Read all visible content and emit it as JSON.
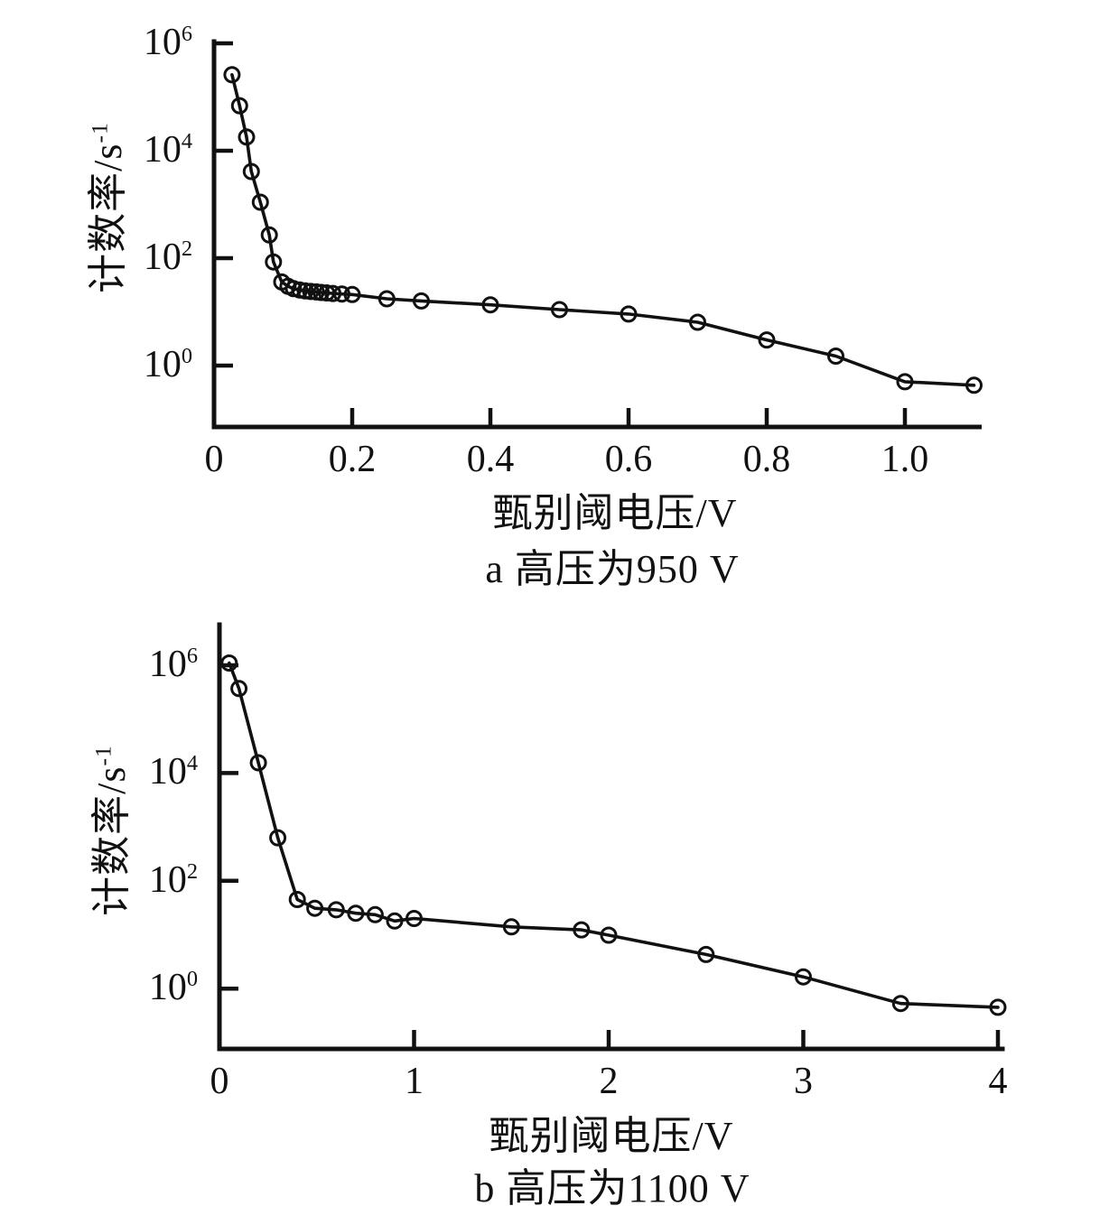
{
  "figure": {
    "background": "#ffffff",
    "ink": "#111111",
    "marker_style": "open-circle",
    "line_color": "#111111"
  },
  "chart_data": [
    {
      "id": "a",
      "type": "line",
      "title": "a  高压为950 V",
      "xlabel": "甄别阈电压/V",
      "ylabel_base": "计数率/s",
      "ylabel_sup": "-1",
      "xlim": [
        0,
        1.1
      ],
      "y_scale": "log",
      "ylim_exp": [
        0,
        6
      ],
      "grid": false,
      "legend": null,
      "x_ticks": [
        {
          "v": 0,
          "label": "0"
        },
        {
          "v": 0.2,
          "label": "0.2"
        },
        {
          "v": 0.4,
          "label": "0.4"
        },
        {
          "v": 0.6,
          "label": "0.6"
        },
        {
          "v": 0.8,
          "label": "0.8"
        },
        {
          "v": 1.0,
          "label": "1.0"
        }
      ],
      "y_ticks": [
        {
          "exp": 6,
          "base": "10",
          "sup": "6"
        },
        {
          "exp": 4,
          "base": "10",
          "sup": "4"
        },
        {
          "exp": 2,
          "base": "10",
          "sup": "2"
        },
        {
          "exp": 0,
          "base": "10",
          "sup": "0"
        }
      ],
      "series": [
        {
          "name": "计数率",
          "marker": "open-circle",
          "points": [
            [
              0.026,
              260000
            ],
            [
              0.037,
              69000
            ],
            [
              0.047,
              18000
            ],
            [
              0.054,
              4100
            ],
            [
              0.067,
              1100
            ],
            [
              0.08,
              270
            ],
            [
              0.086,
              85
            ],
            [
              0.098,
              36
            ],
            [
              0.107,
              30
            ],
            [
              0.115,
              27
            ],
            [
              0.124,
              25.5
            ],
            [
              0.132,
              24.5
            ],
            [
              0.14,
              24
            ],
            [
              0.148,
              23.5
            ],
            [
              0.155,
              23
            ],
            [
              0.163,
              22.5
            ],
            [
              0.172,
              22
            ],
            [
              0.185,
              21.5
            ],
            [
              0.2,
              21
            ],
            [
              0.25,
              17.5
            ],
            [
              0.3,
              16
            ],
            [
              0.4,
              13.5
            ],
            [
              0.5,
              11
            ],
            [
              0.6,
              9.1
            ],
            [
              0.7,
              6.4
            ],
            [
              0.8,
              3.0
            ],
            [
              0.9,
              1.5
            ],
            [
              1.0,
              0.5
            ],
            [
              1.1,
              0.43
            ]
          ]
        }
      ]
    },
    {
      "id": "b",
      "type": "line",
      "title": "b  高压为1100 V",
      "xlabel": "甄别阈电压/V",
      "ylabel_base": "计数率/s",
      "ylabel_sup": "-1",
      "xlim": [
        0,
        4
      ],
      "y_scale": "log",
      "ylim_exp": [
        0,
        6
      ],
      "grid": false,
      "legend": null,
      "x_ticks": [
        {
          "v": 0,
          "label": "0"
        },
        {
          "v": 1,
          "label": "1"
        },
        {
          "v": 2,
          "label": "2"
        },
        {
          "v": 3,
          "label": "3"
        },
        {
          "v": 4,
          "label": "4"
        }
      ],
      "y_ticks": [
        {
          "exp": 6,
          "base": "10",
          "sup": "6"
        },
        {
          "exp": 4,
          "base": "10",
          "sup": "4"
        },
        {
          "exp": 2,
          "base": "10",
          "sup": "2"
        },
        {
          "exp": 0,
          "base": "10",
          "sup": "0"
        }
      ],
      "series": [
        {
          "name": "计数率",
          "marker": "open-circle",
          "points": [
            [
              0.05,
              1100000
            ],
            [
              0.1,
              370000
            ],
            [
              0.2,
              15500
            ],
            [
              0.3,
              630
            ],
            [
              0.4,
              45
            ],
            [
              0.49,
              31
            ],
            [
              0.6,
              29
            ],
            [
              0.7,
              25
            ],
            [
              0.8,
              23.5
            ],
            [
              0.9,
              18
            ],
            [
              1.0,
              20
            ],
            [
              1.5,
              14
            ],
            [
              1.86,
              12.3
            ],
            [
              2.0,
              9.8
            ],
            [
              2.5,
              4.3
            ],
            [
              3.0,
              1.65
            ],
            [
              3.5,
              0.53
            ],
            [
              4.0,
              0.45
            ]
          ]
        }
      ]
    }
  ]
}
